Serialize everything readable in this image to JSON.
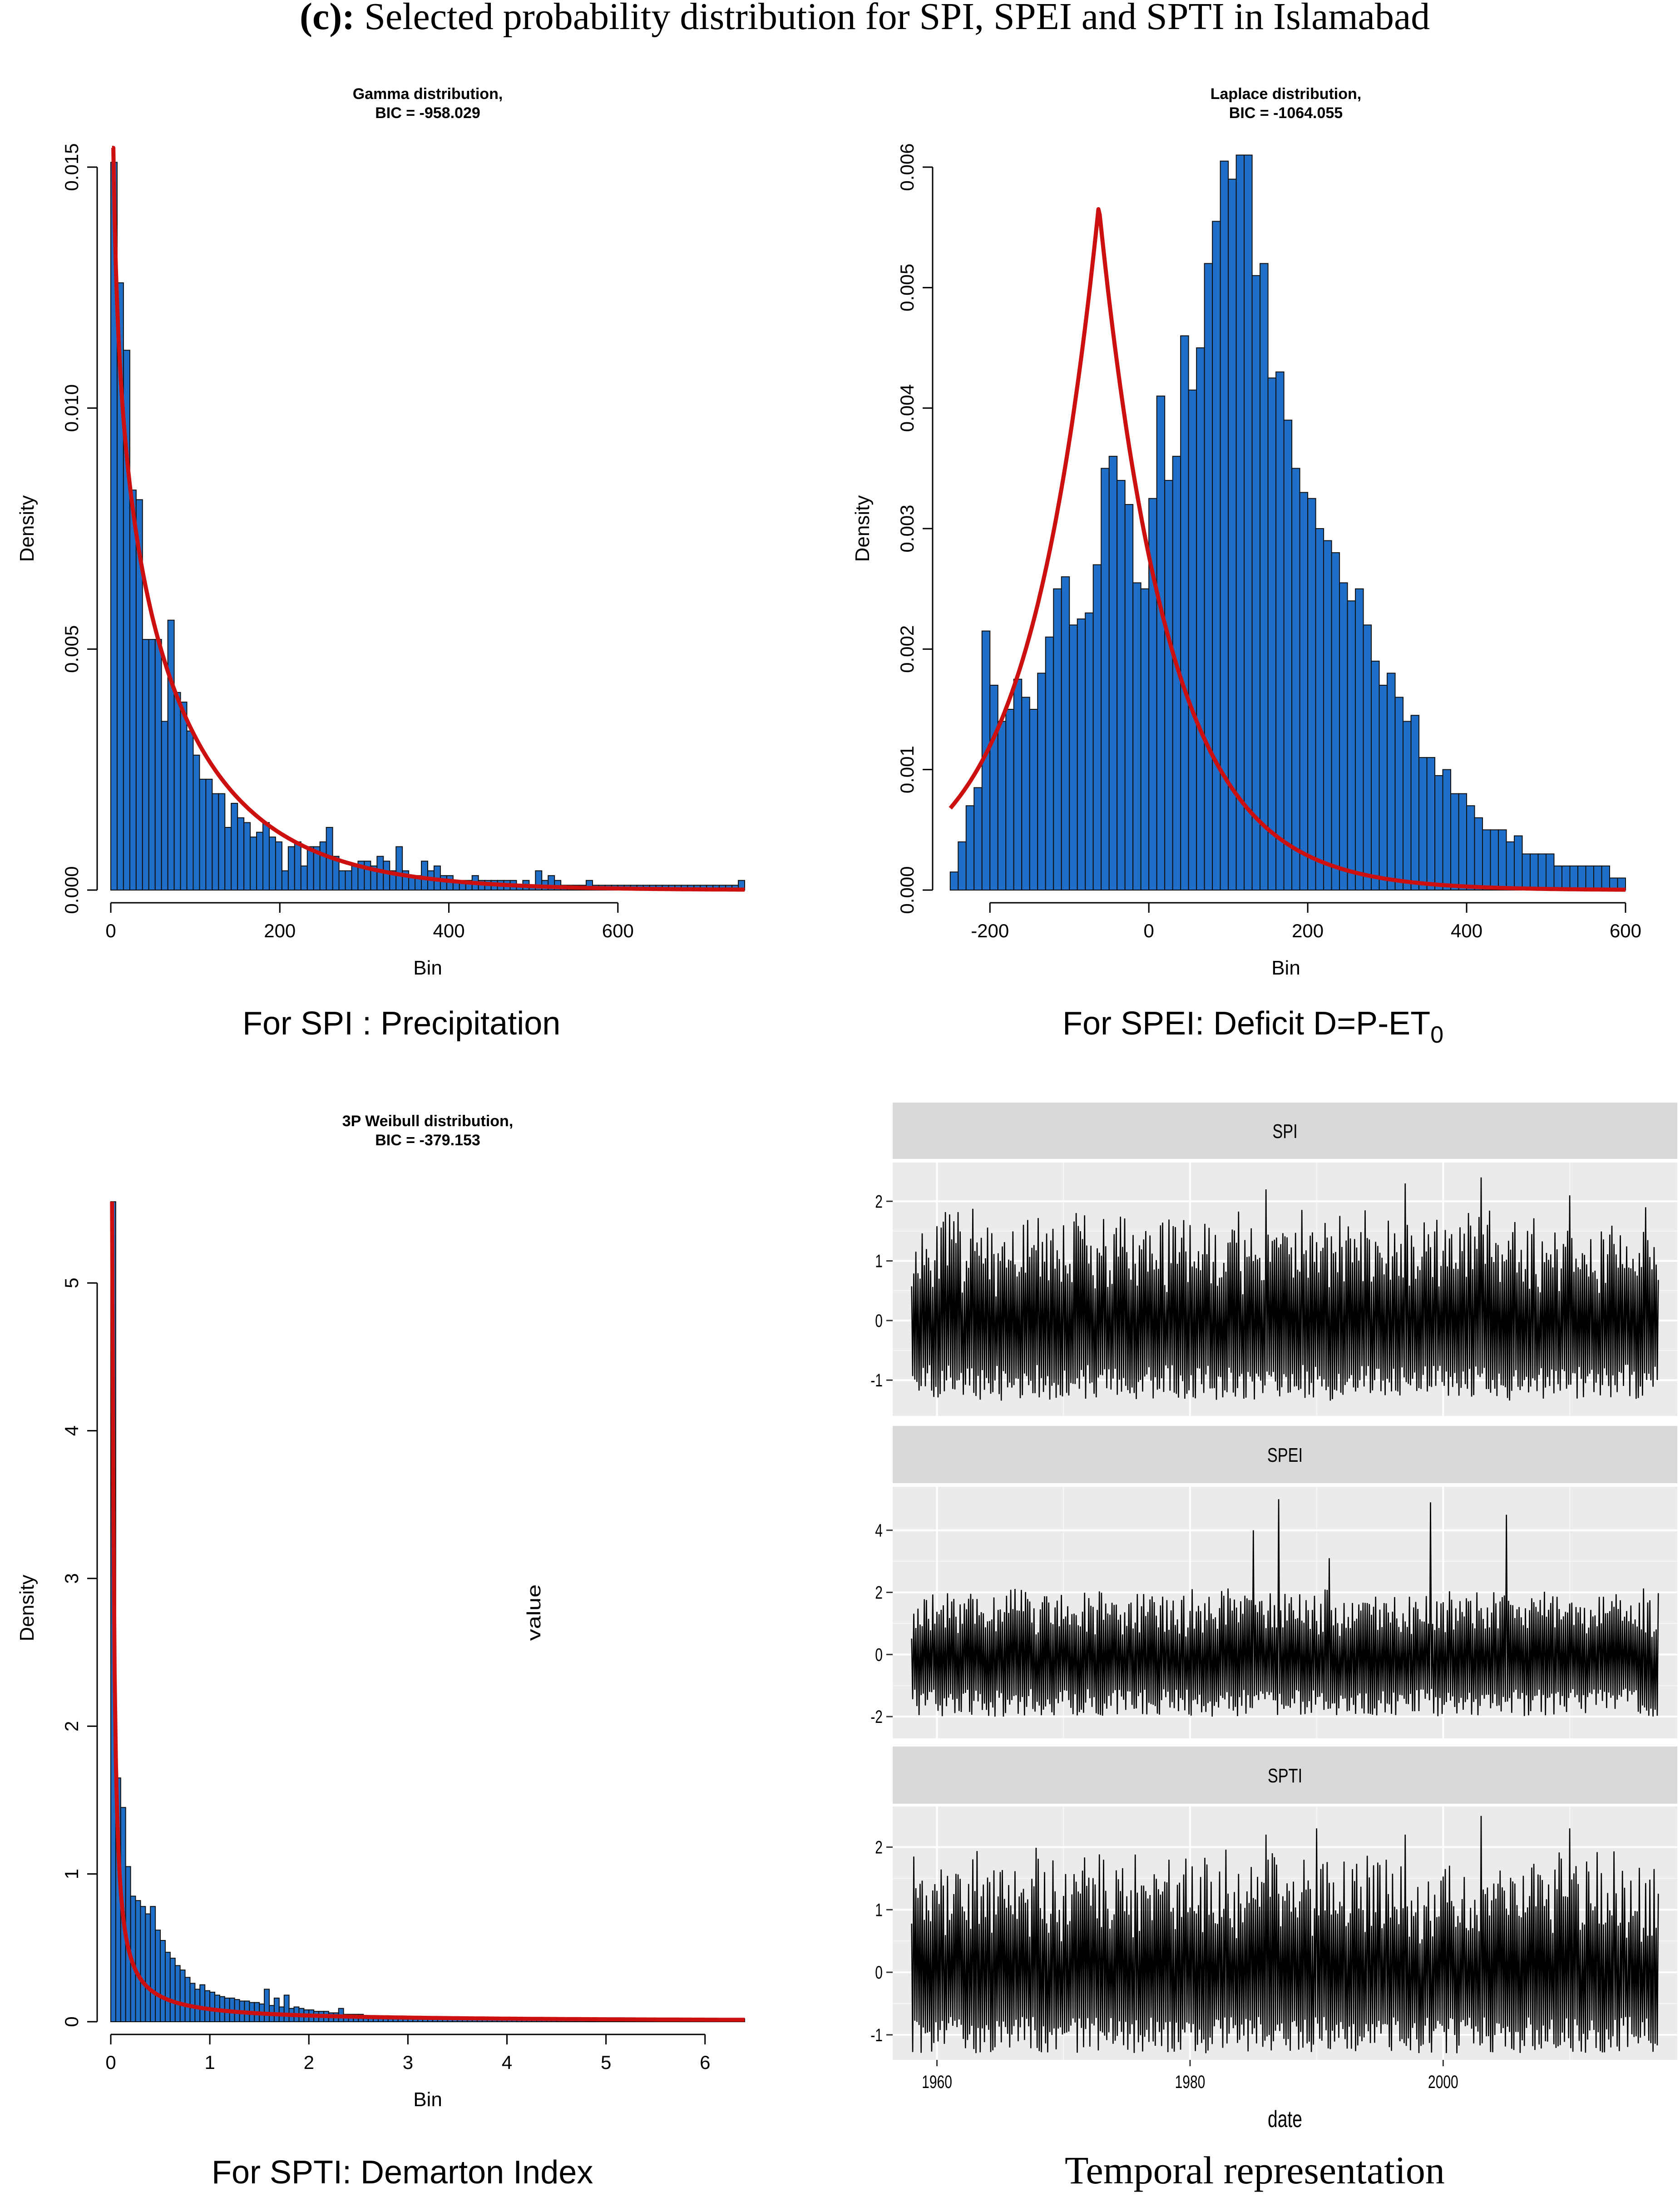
{
  "figure": {
    "title_bold": "(c):",
    "title_rest": " Selected probability distribution  for SPI, SPEI and SPTI in Islamabad"
  },
  "captions": {
    "spi": "For SPI : Precipitation",
    "spei_prefix": "For SPEI: ",
    "spei_formula": "Deficit D=P-ET",
    "spei_sub": "0",
    "spti": "For SPTI: Demarton Index",
    "temporal": "Temporal representation"
  },
  "colors": {
    "bar": "#1f6fc9",
    "curve": "#cc1010",
    "ggpanel": "#ebebeb",
    "strip": "#d9d9d9"
  },
  "chart_data": [
    {
      "type": "bar",
      "title": "Gamma distribution,",
      "subtitle": "BIC = -958.029",
      "xlabel": "Bin",
      "ylabel": "Density",
      "xlim": [
        0,
        750
      ],
      "ylim": [
        0,
        0.015
      ],
      "xticks": [
        0,
        200,
        400,
        600
      ],
      "yticks": [
        "0.000",
        "0.005",
        "0.010",
        "0.015"
      ],
      "bin_start": 0,
      "bin_width": 7.5,
      "values": [
        0.0151,
        0.0126,
        0.0112,
        0.0083,
        0.0081,
        0.0052,
        0.0052,
        0.0052,
        0.0035,
        0.0056,
        0.0041,
        0.0039,
        0.0033,
        0.0028,
        0.0023,
        0.0023,
        0.002,
        0.002,
        0.0013,
        0.0018,
        0.0015,
        0.0014,
        0.0011,
        0.0012,
        0.0014,
        0.0011,
        0.001,
        0.0004,
        0.0009,
        0.001,
        0.0005,
        0.0009,
        0.0009,
        0.001,
        0.0013,
        0.0007,
        0.0004,
        0.0004,
        0.0005,
        0.0006,
        0.0006,
        0.0005,
        0.0007,
        0.0006,
        0.0004,
        0.0009,
        0.0004,
        0.0003,
        0.0003,
        0.0006,
        0.0004,
        0.0005,
        0.0003,
        0.0003,
        0.0002,
        0.0002,
        0.0002,
        0.0003,
        0.0002,
        0.0002,
        0.0002,
        0.0002,
        0.0002,
        0.0002,
        0.0001,
        0.0002,
        0.0001,
        0.0004,
        0.0002,
        0.0003,
        0.0002,
        0.0001,
        0.0001,
        0.0001,
        0.0001,
        0.0002,
        0.0001,
        0.0001,
        0.0001,
        0.0001,
        0.0001,
        0.0001,
        0.0001,
        0.0001,
        0.0001,
        0.0001,
        0.0001,
        0.0001,
        0.0001,
        0.0001,
        0.0001,
        0.0001,
        0.0001,
        0.0001,
        0.0001,
        0.0001,
        0.0001,
        0.0001,
        0.0001,
        0.0002
      ],
      "curve": {
        "family": "gamma",
        "shape": 0.78,
        "scale": 120.0
      }
    },
    {
      "type": "bar",
      "title": "Laplace distribution,",
      "subtitle": "BIC = -1064.055",
      "xlabel": "Bin",
      "ylabel": "Density",
      "xlim": [
        -255,
        600
      ],
      "ylim": [
        0,
        0.006
      ],
      "xticks": [
        -200,
        0,
        200,
        400,
        600
      ],
      "yticks": [
        "0.000",
        "0.001",
        "0.002",
        "0.003",
        "0.004",
        "0.005",
        "0.006"
      ],
      "bin_start": -250,
      "bin_width": 10,
      "values": [
        0.00015,
        0.0004,
        0.0007,
        0.00085,
        0.00215,
        0.0017,
        0.0014,
        0.0015,
        0.00175,
        0.0016,
        0.0015,
        0.0018,
        0.0021,
        0.0025,
        0.0026,
        0.0022,
        0.00225,
        0.0023,
        0.0027,
        0.0035,
        0.0036,
        0.0034,
        0.0032,
        0.00255,
        0.0025,
        0.00325,
        0.0041,
        0.0034,
        0.0036,
        0.0046,
        0.00415,
        0.0045,
        0.0052,
        0.00555,
        0.00605,
        0.0059,
        0.0061,
        0.0061,
        0.0051,
        0.0052,
        0.00425,
        0.0043,
        0.0039,
        0.0035,
        0.0033,
        0.00325,
        0.003,
        0.0029,
        0.0028,
        0.00255,
        0.0024,
        0.0025,
        0.0022,
        0.0019,
        0.0017,
        0.0018,
        0.0016,
        0.0014,
        0.00145,
        0.0011,
        0.0011,
        0.00095,
        0.001,
        0.0008,
        0.0008,
        0.0007,
        0.0006,
        0.0005,
        0.0005,
        0.0005,
        0.0004,
        0.00045,
        0.0003,
        0.0003,
        0.0003,
        0.0003,
        0.0002,
        0.0002,
        0.0002,
        0.0002,
        0.0002,
        0.0002,
        0.0002,
        0.0001,
        0.0001,
        0.0001,
        0.0001,
        0.0001,
        0.0001,
        0.0001,
        0.0001,
        0.0001,
        0.0001,
        0.0001,
        0.0001,
        0.0001,
        0.0001,
        0.0001,
        0.0001,
        0.0001
      ],
      "curve": {
        "family": "laplace",
        "location": -63,
        "scale": 88
      }
    },
    {
      "type": "bar",
      "title": "3P Weibull distribution,",
      "subtitle": "BIC = -379.153",
      "xlabel": "Bin",
      "ylabel": "Density",
      "xlim": [
        0,
        6.4
      ],
      "ylim": [
        0,
        5.6
      ],
      "xticks": [
        0,
        1,
        2,
        3,
        4,
        5,
        6
      ],
      "yticks": [
        "0",
        "1",
        "2",
        "3",
        "4",
        "5"
      ],
      "bin_start": 0,
      "bin_width": 0.05,
      "values": [
        5.55,
        1.65,
        1.45,
        1.05,
        0.85,
        0.82,
        0.78,
        0.73,
        0.78,
        0.62,
        0.55,
        0.47,
        0.43,
        0.38,
        0.35,
        0.3,
        0.26,
        0.22,
        0.25,
        0.21,
        0.2,
        0.18,
        0.17,
        0.16,
        0.16,
        0.15,
        0.14,
        0.14,
        0.13,
        0.13,
        0.12,
        0.22,
        0.11,
        0.16,
        0.1,
        0.18,
        0.09,
        0.1,
        0.09,
        0.08,
        0.08,
        0.07,
        0.07,
        0.07,
        0.06,
        0.06,
        0.09,
        0.05,
        0.05,
        0.05,
        0.05,
        0.04,
        0.04,
        0.04,
        0.04,
        0.04,
        0.03,
        0.03,
        0.03,
        0.03,
        0.03,
        0.03,
        0.03,
        0.02,
        0.02,
        0.02,
        0.02,
        0.02,
        0.02,
        0.02,
        0.02,
        0.02,
        0.02,
        0.02,
        0.02,
        0.02,
        0.02,
        0.02,
        0.02,
        0.02,
        0.02,
        0.02,
        0.02,
        0.02,
        0.02,
        0.02,
        0.02,
        0.02,
        0.02,
        0.02,
        0.02,
        0.02,
        0.02,
        0.02,
        0.02,
        0.02,
        0.02,
        0.02,
        0.02,
        0.02,
        0.02,
        0.02,
        0.02,
        0.02,
        0.02,
        0.02,
        0.02,
        0.02,
        0.02,
        0.02,
        0.02,
        0.02,
        0.02,
        0.02,
        0.02,
        0.02,
        0.02,
        0.02,
        0.02,
        0.02,
        0.02,
        0.02,
        0.02,
        0.02,
        0.02,
        0.02,
        0.02,
        0.02
      ],
      "curve": {
        "family": "power-decay",
        "a": 0.085,
        "b": 1.02,
        "peak": 5.55
      }
    },
    {
      "type": "line",
      "xlabel": "date",
      "ylabel": "value",
      "xlim": [
        1956.5,
        2018.5
      ],
      "xticks": [
        1960,
        1980,
        2000
      ],
      "date_start": 1958.0,
      "date_end": 2017.0,
      "panels": [
        {
          "name": "SPI",
          "ylim": [
            -1.6,
            2.65
          ],
          "yticks": [
            -1,
            0,
            1,
            2
          ],
          "seed": 11,
          "low": -1.35,
          "high": 1.7,
          "peaks": [
            [
              1986,
              2.2
            ],
            [
              1997,
              2.3
            ],
            [
              2003,
              2.4
            ],
            [
              2010,
              2.1
            ],
            [
              2016,
              1.9
            ]
          ]
        },
        {
          "name": "SPEI",
          "ylim": [
            -2.7,
            5.4
          ],
          "yticks": [
            -2,
            0,
            2,
            4
          ],
          "seed": 23,
          "low": -2.0,
          "high": 2.0,
          "peaks": [
            [
              1985,
              4.0
            ],
            [
              1987,
              5.0
            ],
            [
              1999,
              4.9
            ],
            [
              2005,
              4.5
            ],
            [
              1991,
              3.1
            ]
          ]
        },
        {
          "name": "SPTI",
          "ylim": [
            -1.4,
            2.65
          ],
          "yticks": [
            -1,
            0,
            1,
            2
          ],
          "seed": 37,
          "low": -1.3,
          "high": 1.8,
          "peaks": [
            [
              1986,
              2.2
            ],
            [
              1990,
              2.3
            ],
            [
              1997,
              2.2
            ],
            [
              2003,
              2.5
            ],
            [
              2010,
              2.3
            ]
          ]
        }
      ]
    }
  ]
}
